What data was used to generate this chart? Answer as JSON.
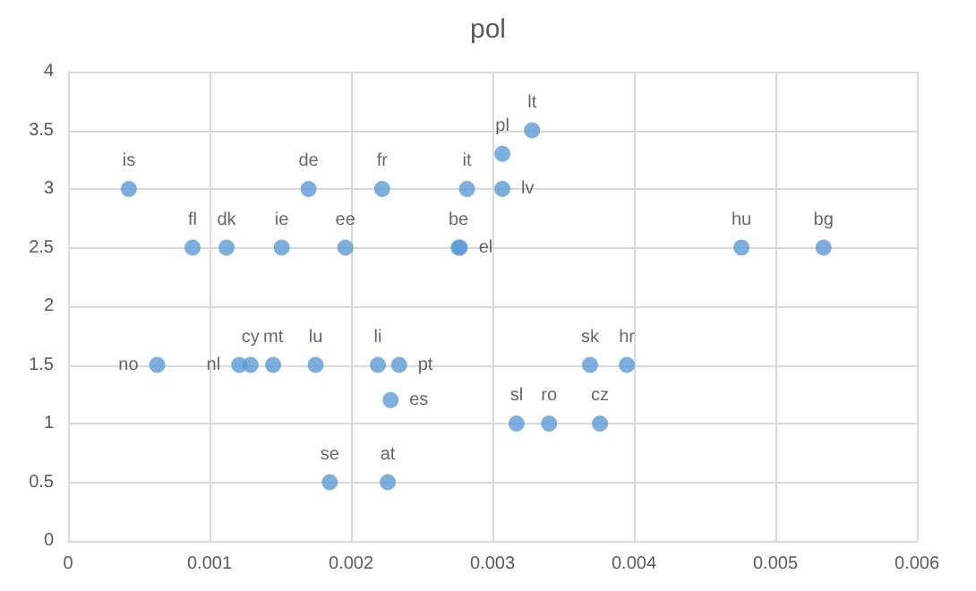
{
  "chart_data": {
    "type": "scatter",
    "title": "pol",
    "x": [
      0.00043,
      0.00088,
      0.00112,
      0.00151,
      0.00196,
      0.0017,
      0.00222,
      0.00282,
      0.00307,
      0.00307,
      0.00328,
      0.00276,
      0.00277,
      0.00063,
      0.00121,
      0.00129,
      0.00145,
      0.00175,
      0.00219,
      0.00234,
      0.00228,
      0.00185,
      0.00226,
      0.00317,
      0.0034,
      0.00376,
      0.00369,
      0.00395,
      0.00476,
      0.00534
    ],
    "series": [
      {
        "color": "#5b9bd5",
        "values": [
          3,
          2.5,
          2.5,
          2.5,
          2.5,
          3,
          3,
          3,
          3,
          3.3,
          3.5,
          2.5,
          2.5,
          1.5,
          1.5,
          1.5,
          1.5,
          1.5,
          1.5,
          1.5,
          1.2,
          0.5,
          0.5,
          1,
          1,
          1,
          1.5,
          1.5,
          2.5,
          2.5
        ],
        "value_labels": [
          "is",
          "fl",
          "dk",
          "ie",
          "ee",
          "de",
          "fr",
          "it",
          "lv",
          "pl",
          "lt",
          "be",
          "el",
          "no",
          "nl",
          "cy",
          "mt",
          "lu",
          "li",
          "pt",
          "es",
          "se",
          "at",
          "sl",
          "ro",
          "cz",
          "sk",
          "hr",
          "hu",
          "bg"
        ]
      }
    ],
    "xlim": [
      0,
      0.006
    ],
    "xticks": [
      0,
      0.001,
      0.002,
      0.003,
      0.004,
      0.005,
      0.006
    ],
    "ylim": [
      0,
      4
    ],
    "yticks": [
      0,
      0.5,
      1,
      1.5,
      2,
      2.5,
      3,
      3.5,
      4
    ],
    "grid": true,
    "marker": "circle"
  }
}
